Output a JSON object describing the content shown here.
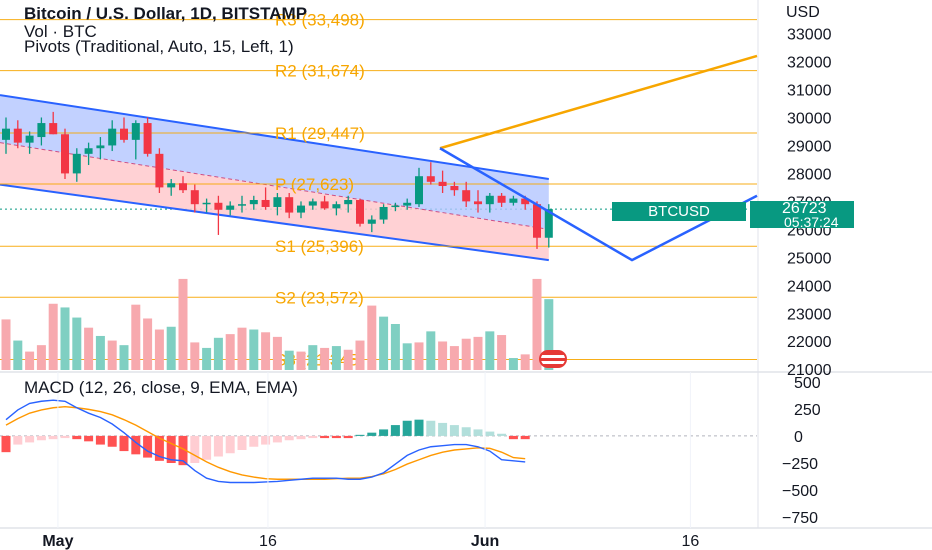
{
  "header": {
    "title": "Bitcoin / U.S. Dollar, 1D, BITSTAMP",
    "volume_label": "Vol · BTC",
    "pivots_label": "Pivots (Traditional, Auto, 15, Left, 1)"
  },
  "macd_title": "MACD (12, 26, close, 9, EMA, EMA)",
  "axis_currency": "USD",
  "ticker": {
    "symbol": "BTCUSD",
    "price": "26723",
    "countdown": "05:37:24"
  },
  "colors": {
    "up": "#089981",
    "down": "#f23645",
    "pivot": "#f7a600",
    "channel_line": "#2962ff",
    "channel_upper_fill": "#b3c6ff",
    "channel_lower_fill": "#ffc9cc",
    "macd_line": "#2962ff",
    "signal_line": "#ff9800"
  },
  "chart_data": [
    {
      "type": "candlestick",
      "title": "Bitcoin / U.S. Dollar, 1D, BITSTAMP",
      "x_ticks": [
        "May",
        "16",
        "Jun",
        "16"
      ],
      "y_ticks": [
        21000,
        22000,
        23000,
        24000,
        25000,
        26000,
        27000,
        28000,
        29000,
        30000,
        31000,
        32000,
        33000
      ],
      "ylim": [
        20900,
        34200
      ],
      "pivots": [
        {
          "label": "R3",
          "value": 33498
        },
        {
          "label": "R2",
          "value": 31674
        },
        {
          "label": "R1",
          "value": 29447
        },
        {
          "label": "P",
          "value": 27623
        },
        {
          "label": "S1",
          "value": 25396
        },
        {
          "label": "S2",
          "value": 23572
        },
        {
          "label": "S3",
          "value": 21345
        }
      ],
      "candles": [
        {
          "o": 29200,
          "h": 30000,
          "l": 28700,
          "c": 29600
        },
        {
          "o": 29600,
          "h": 29900,
          "l": 28900,
          "c": 29100
        },
        {
          "o": 29100,
          "h": 29500,
          "l": 28700,
          "c": 29350
        },
        {
          "o": 29300,
          "h": 30000,
          "l": 29000,
          "c": 29800
        },
        {
          "o": 29800,
          "h": 30200,
          "l": 29400,
          "c": 29400
        },
        {
          "o": 29400,
          "h": 29600,
          "l": 27800,
          "c": 28000
        },
        {
          "o": 28000,
          "h": 28900,
          "l": 27700,
          "c": 28700
        },
        {
          "o": 28700,
          "h": 29100,
          "l": 28300,
          "c": 28900
        },
        {
          "o": 28900,
          "h": 29300,
          "l": 28500,
          "c": 29000
        },
        {
          "o": 29000,
          "h": 29900,
          "l": 28800,
          "c": 29600
        },
        {
          "o": 29600,
          "h": 30000,
          "l": 29100,
          "c": 29200
        },
        {
          "o": 29200,
          "h": 29900,
          "l": 28500,
          "c": 29800
        },
        {
          "o": 29800,
          "h": 30000,
          "l": 28600,
          "c": 28700
        },
        {
          "o": 28700,
          "h": 28900,
          "l": 27300,
          "c": 27500
        },
        {
          "o": 27500,
          "h": 27800,
          "l": 27200,
          "c": 27650
        },
        {
          "o": 27650,
          "h": 27900,
          "l": 27300,
          "c": 27400
        },
        {
          "o": 27400,
          "h": 27600,
          "l": 26600,
          "c": 26900
        },
        {
          "o": 26900,
          "h": 27100,
          "l": 26600,
          "c": 26950
        },
        {
          "o": 26950,
          "h": 27200,
          "l": 25800,
          "c": 26700
        },
        {
          "o": 26700,
          "h": 27000,
          "l": 26500,
          "c": 26850
        },
        {
          "o": 26850,
          "h": 27200,
          "l": 26600,
          "c": 26900
        },
        {
          "o": 26900,
          "h": 27200,
          "l": 26700,
          "c": 27050
        },
        {
          "o": 27050,
          "h": 27500,
          "l": 26700,
          "c": 26800
        },
        {
          "o": 26800,
          "h": 27300,
          "l": 26500,
          "c": 27150
        },
        {
          "o": 27150,
          "h": 27300,
          "l": 26400,
          "c": 26600
        },
        {
          "o": 26600,
          "h": 27000,
          "l": 26400,
          "c": 26850
        },
        {
          "o": 26850,
          "h": 27100,
          "l": 26700,
          "c": 27000
        },
        {
          "o": 27000,
          "h": 27200,
          "l": 26700,
          "c": 26750
        },
        {
          "o": 26750,
          "h": 27000,
          "l": 26500,
          "c": 26900
        },
        {
          "o": 26900,
          "h": 27200,
          "l": 26600,
          "c": 27050
        },
        {
          "o": 27050,
          "h": 27100,
          "l": 26100,
          "c": 26200
        },
        {
          "o": 26200,
          "h": 26500,
          "l": 25900,
          "c": 26350
        },
        {
          "o": 26350,
          "h": 26900,
          "l": 26200,
          "c": 26800
        },
        {
          "o": 26800,
          "h": 26950,
          "l": 26650,
          "c": 26850
        },
        {
          "o": 26850,
          "h": 27100,
          "l": 26700,
          "c": 26950
        },
        {
          "o": 26900,
          "h": 28200,
          "l": 26800,
          "c": 27900
        },
        {
          "o": 27900,
          "h": 28400,
          "l": 27600,
          "c": 27700
        },
        {
          "o": 27700,
          "h": 28100,
          "l": 27300,
          "c": 27550
        },
        {
          "o": 27550,
          "h": 27700,
          "l": 27200,
          "c": 27400
        },
        {
          "o": 27400,
          "h": 27700,
          "l": 26800,
          "c": 27000
        },
        {
          "o": 27000,
          "h": 27400,
          "l": 26600,
          "c": 26900
        },
        {
          "o": 26900,
          "h": 27300,
          "l": 26600,
          "c": 27200
        },
        {
          "o": 27200,
          "h": 27300,
          "l": 26800,
          "c": 26950
        },
        {
          "o": 26950,
          "h": 27200,
          "l": 26850,
          "c": 27100
        },
        {
          "o": 27100,
          "h": 27200,
          "l": 26700,
          "c": 26900
        },
        {
          "o": 26900,
          "h": 27000,
          "l": 25300,
          "c": 25700
        },
        {
          "o": 25700,
          "h": 26900,
          "l": 25350,
          "c": 26723
        }
      ],
      "volume": [
        {
          "v": 0.55,
          "up": false
        },
        {
          "v": 0.32,
          "up": true
        },
        {
          "v": 0.2,
          "up": false
        },
        {
          "v": 0.27,
          "up": false
        },
        {
          "v": 0.72,
          "up": false
        },
        {
          "v": 0.68,
          "up": true
        },
        {
          "v": 0.57,
          "up": true
        },
        {
          "v": 0.46,
          "up": false
        },
        {
          "v": 0.37,
          "up": true
        },
        {
          "v": 0.32,
          "up": false
        },
        {
          "v": 0.27,
          "up": true
        },
        {
          "v": 0.71,
          "up": false
        },
        {
          "v": 0.56,
          "up": false
        },
        {
          "v": 0.44,
          "up": false
        },
        {
          "v": 0.47,
          "up": true
        },
        {
          "v": 0.99,
          "up": false
        },
        {
          "v": 0.3,
          "up": false
        },
        {
          "v": 0.24,
          "up": true
        },
        {
          "v": 0.35,
          "up": true
        },
        {
          "v": 0.39,
          "up": false
        },
        {
          "v": 0.46,
          "up": false
        },
        {
          "v": 0.44,
          "up": true
        },
        {
          "v": 0.41,
          "up": false
        },
        {
          "v": 0.36,
          "up": false
        },
        {
          "v": 0.21,
          "up": true
        },
        {
          "v": 0.2,
          "up": false
        },
        {
          "v": 0.27,
          "up": true
        },
        {
          "v": 0.24,
          "up": false
        },
        {
          "v": 0.26,
          "up": true
        },
        {
          "v": 0.22,
          "up": false
        },
        {
          "v": 0.32,
          "up": false
        },
        {
          "v": 0.7,
          "up": false
        },
        {
          "v": 0.58,
          "up": true
        },
        {
          "v": 0.5,
          "up": true
        },
        {
          "v": 0.29,
          "up": true
        },
        {
          "v": 0.3,
          "up": false
        },
        {
          "v": 0.42,
          "up": true
        },
        {
          "v": 0.31,
          "up": false
        },
        {
          "v": 0.26,
          "up": false
        },
        {
          "v": 0.34,
          "up": false
        },
        {
          "v": 0.36,
          "up": false
        },
        {
          "v": 0.42,
          "up": true
        },
        {
          "v": 0.38,
          "up": false
        },
        {
          "v": 0.13,
          "up": true
        },
        {
          "v": 0.17,
          "up": false
        },
        {
          "v": 0.99,
          "up": false
        },
        {
          "v": 0.77,
          "up": true
        }
      ],
      "channel": {
        "upper_start": 30800,
        "upper_end": 27800,
        "mid_start": 29100,
        "mid_end": 26000,
        "lower_start": 27600,
        "lower_end": 24900
      },
      "projection": [
        {
          "label": "rise",
          "from": 28900,
          "to": 32200
        },
        {
          "label": "drop",
          "from": 28900,
          "to": 24900
        },
        {
          "label": "rebound",
          "from": 24900,
          "to": 27200
        }
      ]
    },
    {
      "type": "macd",
      "title": "MACD (12, 26, close, 9, EMA, EMA)",
      "y_ticks": [
        500,
        250,
        0,
        -250,
        -500,
        -750
      ],
      "ylim": [
        -850,
        590
      ],
      "macd": [
        150,
        240,
        300,
        320,
        330,
        320,
        260,
        210,
        170,
        110,
        30,
        -60,
        -140,
        -190,
        -220,
        -230,
        -320,
        -390,
        -420,
        -430,
        -430,
        -430,
        -425,
        -420,
        -410,
        -400,
        -390,
        -390,
        -390,
        -400,
        -400,
        -380,
        -340,
        -260,
        -180,
        -130,
        -100,
        -90,
        -80,
        -80,
        -100,
        -140,
        -220,
        -230,
        -240
      ],
      "signal": [
        100,
        160,
        210,
        240,
        260,
        270,
        260,
        245,
        225,
        195,
        150,
        100,
        40,
        -20,
        -70,
        -120,
        -180,
        -240,
        -290,
        -330,
        -360,
        -380,
        -395,
        -400,
        -400,
        -400,
        -400,
        -400,
        -395,
        -390,
        -390,
        -375,
        -350,
        -310,
        -260,
        -220,
        -180,
        -150,
        -130,
        -120,
        -110,
        -115,
        -150,
        -200,
        -210
      ],
      "histogram": [
        -150,
        -80,
        -60,
        -40,
        -30,
        -20,
        -30,
        -50,
        -80,
        -100,
        -140,
        -170,
        -200,
        -230,
        -250,
        -270,
        -250,
        -220,
        -190,
        -160,
        -130,
        -100,
        -80,
        -60,
        -40,
        -30,
        -20,
        -20,
        -20,
        -20,
        10,
        30,
        60,
        100,
        140,
        150,
        140,
        120,
        100,
        80,
        60,
        40,
        20,
        -30,
        -30
      ]
    }
  ]
}
